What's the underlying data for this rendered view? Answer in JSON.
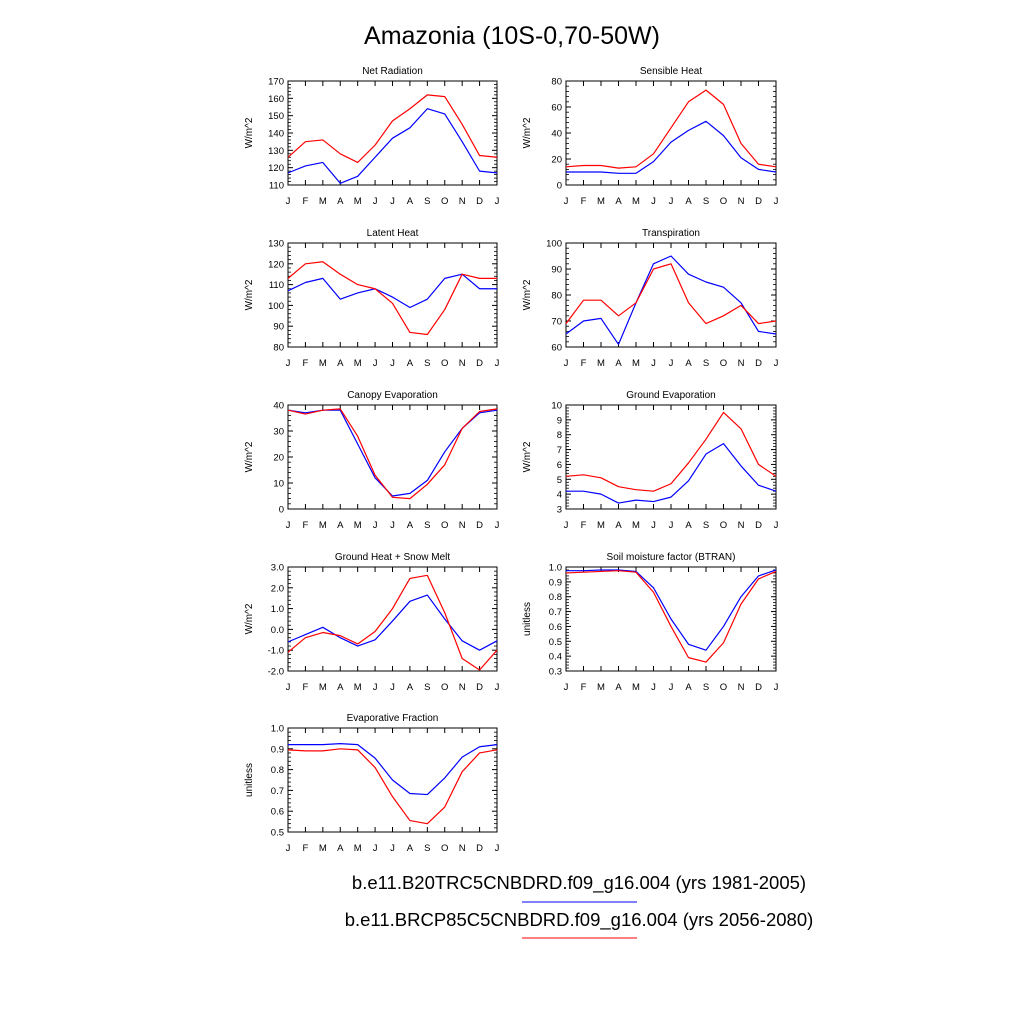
{
  "figure": {
    "title": "Amazonia (10S-0,70-50W)"
  },
  "legend": [
    {
      "label": "b.e11.B20TRC5CNBDRD.f09_g16.004 (yrs 1981-2005)",
      "color": "#0000ff"
    },
    {
      "label": "b.e11.BRCP85C5CNBDRD.f09_g16.004 (yrs 2056-2080)",
      "color": "#ff0000"
    }
  ],
  "chart_data": [
    {
      "type": "line",
      "title": "Net Radiation",
      "ylabel": "W/m^2",
      "ylim": [
        110,
        170
      ],
      "yticks": [
        "110",
        "120",
        "130",
        "140",
        "150",
        "160",
        "170"
      ],
      "categories": [
        "J",
        "F",
        "M",
        "A",
        "M",
        "J",
        "J",
        "A",
        "S",
        "O",
        "N",
        "D",
        "J"
      ],
      "series": [
        {
          "color": "#0000ff",
          "values": [
            117,
            121,
            123,
            111,
            115,
            126,
            137,
            143,
            154,
            151,
            135,
            118,
            117
          ]
        },
        {
          "color": "#ff0000",
          "values": [
            126,
            135,
            136,
            128,
            123,
            133,
            147,
            154,
            162,
            161,
            145,
            127,
            126
          ]
        }
      ]
    },
    {
      "type": "line",
      "title": "Sensible Heat",
      "ylabel": "W/m^2",
      "ylim": [
        0,
        80
      ],
      "yticks": [
        "0",
        "20",
        "40",
        "60",
        "80"
      ],
      "categories": [
        "J",
        "F",
        "M",
        "A",
        "M",
        "J",
        "J",
        "A",
        "S",
        "O",
        "N",
        "D",
        "J"
      ],
      "series": [
        {
          "color": "#0000ff",
          "values": [
            10,
            10,
            10,
            9,
            9,
            18,
            33,
            42,
            49,
            38,
            21,
            12,
            10
          ]
        },
        {
          "color": "#ff0000",
          "values": [
            14,
            15,
            15,
            13,
            14,
            24,
            44,
            64,
            73,
            62,
            32,
            16,
            14
          ]
        }
      ]
    },
    {
      "type": "line",
      "title": "Latent Heat",
      "ylabel": "W/m^2",
      "ylim": [
        80,
        130
      ],
      "yticks": [
        "80",
        "90",
        "100",
        "110",
        "120",
        "130"
      ],
      "categories": [
        "J",
        "F",
        "M",
        "A",
        "M",
        "J",
        "J",
        "A",
        "S",
        "O",
        "N",
        "D",
        "J"
      ],
      "series": [
        {
          "color": "#0000ff",
          "values": [
            107,
            111,
            113,
            103,
            106,
            108,
            104,
            99,
            103,
            113,
            115,
            108,
            108
          ]
        },
        {
          "color": "#ff0000",
          "values": [
            113,
            120,
            121,
            115,
            110,
            108,
            101,
            87,
            86,
            98,
            115,
            113,
            113
          ]
        }
      ]
    },
    {
      "type": "line",
      "title": "Transpiration",
      "ylabel": "W/m^2",
      "ylim": [
        60,
        100
      ],
      "yticks": [
        "60",
        "70",
        "80",
        "90",
        "100"
      ],
      "categories": [
        "J",
        "F",
        "M",
        "A",
        "M",
        "J",
        "J",
        "A",
        "S",
        "O",
        "N",
        "D",
        "J"
      ],
      "series": [
        {
          "color": "#0000ff",
          "values": [
            65,
            70,
            71,
            61,
            77,
            92,
            95,
            88,
            85,
            83,
            77,
            66,
            65
          ]
        },
        {
          "color": "#ff0000",
          "values": [
            69,
            78,
            78,
            72,
            77,
            90,
            92,
            77,
            69,
            72,
            76,
            69,
            70
          ]
        }
      ]
    },
    {
      "type": "line",
      "title": "Canopy Evaporation",
      "ylabel": "W/m^2",
      "ylim": [
        0,
        40
      ],
      "yticks": [
        "0",
        "10",
        "20",
        "30",
        "40"
      ],
      "categories": [
        "J",
        "F",
        "M",
        "A",
        "M",
        "J",
        "J",
        "A",
        "S",
        "O",
        "N",
        "D",
        "J"
      ],
      "series": [
        {
          "color": "#0000ff",
          "values": [
            38,
            37,
            38,
            38,
            25,
            12,
            5,
            6,
            11,
            22,
            31,
            37,
            38
          ]
        },
        {
          "color": "#ff0000",
          "values": [
            38,
            36.5,
            38,
            38.5,
            28,
            13,
            4.5,
            4,
            9.5,
            17,
            31,
            37.5,
            38.5
          ]
        }
      ]
    },
    {
      "type": "line",
      "title": "Ground Evaporation",
      "ylabel": "W/m^2",
      "ylim": [
        3,
        10
      ],
      "yticks": [
        "3",
        "4",
        "5",
        "6",
        "7",
        "8",
        "9",
        "10"
      ],
      "categories": [
        "J",
        "F",
        "M",
        "A",
        "M",
        "J",
        "J",
        "A",
        "S",
        "O",
        "N",
        "D",
        "J"
      ],
      "series": [
        {
          "color": "#0000ff",
          "values": [
            4.2,
            4.2,
            4.0,
            3.4,
            3.6,
            3.5,
            3.8,
            4.9,
            6.7,
            7.4,
            5.9,
            4.6,
            4.2
          ]
        },
        {
          "color": "#ff0000",
          "values": [
            5.2,
            5.3,
            5.1,
            4.5,
            4.3,
            4.2,
            4.7,
            6.1,
            7.7,
            9.5,
            8.4,
            6.0,
            5.2
          ]
        }
      ]
    },
    {
      "type": "line",
      "title": "Ground Heat + Snow Melt",
      "ylabel": "W/m^2",
      "ylim": [
        -2.0,
        3.0
      ],
      "yticks": [
        "-2.0",
        "-1.0",
        "0.0",
        "1.0",
        "2.0",
        "3.0"
      ],
      "categories": [
        "J",
        "F",
        "M",
        "A",
        "M",
        "J",
        "J",
        "A",
        "S",
        "O",
        "N",
        "D",
        "J"
      ],
      "series": [
        {
          "color": "#0000ff",
          "values": [
            -0.6,
            -0.25,
            0.1,
            -0.4,
            -0.8,
            -0.5,
            0.4,
            1.35,
            1.65,
            0.5,
            -0.55,
            -1.0,
            -0.55
          ]
        },
        {
          "color": "#ff0000",
          "values": [
            -1.1,
            -0.4,
            -0.15,
            -0.3,
            -0.7,
            -0.1,
            1.0,
            2.45,
            2.6,
            0.8,
            -1.4,
            -1.95,
            -1.0
          ]
        }
      ]
    },
    {
      "type": "line",
      "title": "Soil moisture factor (BTRAN)",
      "ylabel": "unitless",
      "ylim": [
        0.3,
        1.0
      ],
      "yticks": [
        "0.3",
        "0.4",
        "0.5",
        "0.6",
        "0.7",
        "0.8",
        "0.9",
        "1.0"
      ],
      "categories": [
        "J",
        "F",
        "M",
        "A",
        "M",
        "J",
        "J",
        "A",
        "S",
        "O",
        "N",
        "D",
        "J"
      ],
      "series": [
        {
          "color": "#0000ff",
          "values": [
            0.975,
            0.975,
            0.98,
            0.98,
            0.97,
            0.86,
            0.65,
            0.48,
            0.44,
            0.6,
            0.8,
            0.94,
            0.98
          ]
        },
        {
          "color": "#ff0000",
          "values": [
            0.96,
            0.965,
            0.97,
            0.975,
            0.965,
            0.83,
            0.6,
            0.39,
            0.36,
            0.49,
            0.75,
            0.92,
            0.97
          ]
        }
      ]
    },
    {
      "type": "line",
      "title": "Evaporative Fraction",
      "ylabel": "unitless",
      "ylim": [
        0.5,
        1.0
      ],
      "yticks": [
        "0.5",
        "0.6",
        "0.7",
        "0.8",
        "0.9",
        "1.0"
      ],
      "categories": [
        "J",
        "F",
        "M",
        "A",
        "M",
        "J",
        "J",
        "A",
        "S",
        "O",
        "N",
        "D",
        "J"
      ],
      "series": [
        {
          "color": "#0000ff",
          "values": [
            0.92,
            0.92,
            0.92,
            0.925,
            0.92,
            0.855,
            0.75,
            0.685,
            0.68,
            0.76,
            0.86,
            0.91,
            0.92
          ]
        },
        {
          "color": "#ff0000",
          "values": [
            0.895,
            0.89,
            0.89,
            0.9,
            0.895,
            0.81,
            0.67,
            0.555,
            0.54,
            0.62,
            0.79,
            0.88,
            0.895
          ]
        }
      ]
    }
  ]
}
